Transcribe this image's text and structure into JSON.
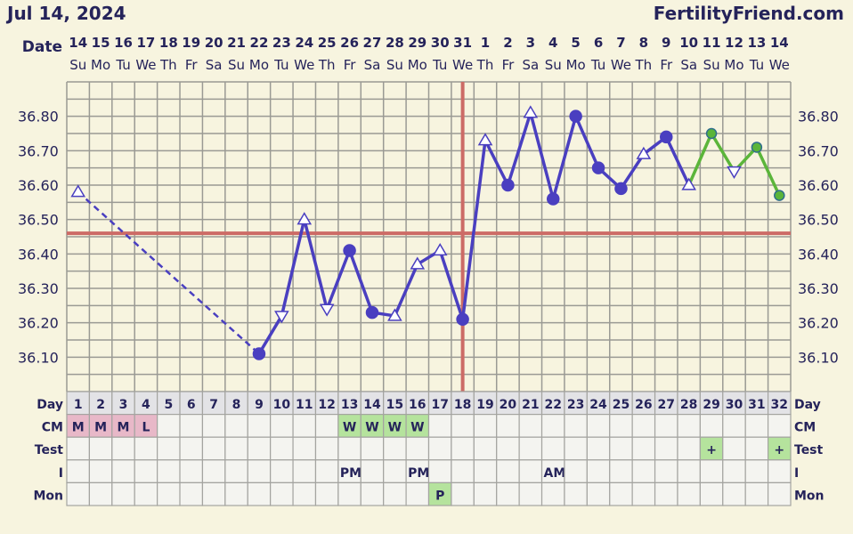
{
  "header": {
    "date": "Jul 14, 2024",
    "site": "FertilityFriend.com"
  },
  "labels": {
    "date": "Date",
    "day": "Day",
    "cm": "CM",
    "test": "Test",
    "intercourse": "I",
    "mon": "Mon"
  },
  "colors": {
    "background": "#f7f4df",
    "line": "#4a3fc0",
    "green": "#5bb53a",
    "coverline": "#cc6b66",
    "menses_cell": "#e8b8c8",
    "fertile_cell": "#b5e39d",
    "day_cell": "#e3e3e6",
    "grid": "#9a9a94"
  },
  "chart_data": {
    "type": "line",
    "dates": [
      "14",
      "15",
      "16",
      "17",
      "18",
      "19",
      "20",
      "21",
      "22",
      "23",
      "24",
      "25",
      "26",
      "27",
      "28",
      "29",
      "30",
      "31",
      "1",
      "2",
      "3",
      "4",
      "5",
      "6",
      "7",
      "8",
      "9",
      "10",
      "11",
      "12",
      "13",
      "14"
    ],
    "weekdays": [
      "Su",
      "Mo",
      "Tu",
      "We",
      "Th",
      "Fr",
      "Sa",
      "Su",
      "Mo",
      "Tu",
      "We",
      "Th",
      "Fr",
      "Sa",
      "Su",
      "Mo",
      "Tu",
      "We",
      "Th",
      "Fr",
      "Sa",
      "Su",
      "Mo",
      "Tu",
      "We",
      "Th",
      "Fr",
      "Sa",
      "Su",
      "Mo",
      "Tu",
      "We"
    ],
    "days": [
      1,
      2,
      3,
      4,
      5,
      6,
      7,
      8,
      9,
      10,
      11,
      12,
      13,
      14,
      15,
      16,
      17,
      18,
      19,
      20,
      21,
      22,
      23,
      24,
      25,
      26,
      27,
      28,
      29,
      30,
      31,
      32
    ],
    "ylim": [
      36.0,
      36.9
    ],
    "yticks": [
      "36.10",
      "36.20",
      "36.30",
      "36.40",
      "36.50",
      "36.60",
      "36.70",
      "36.80"
    ],
    "grid": true,
    "coverline": 36.46,
    "ovulation_day": 18,
    "temps": [
      {
        "day": 1,
        "temp": 36.58,
        "marker": "up"
      },
      {
        "day": 9,
        "temp": 36.11,
        "marker": "dot"
      },
      {
        "day": 10,
        "temp": 36.22,
        "marker": "down"
      },
      {
        "day": 11,
        "temp": 36.5,
        "marker": "up"
      },
      {
        "day": 12,
        "temp": 36.24,
        "marker": "down"
      },
      {
        "day": 13,
        "temp": 36.41,
        "marker": "dot"
      },
      {
        "day": 14,
        "temp": 36.23,
        "marker": "dot"
      },
      {
        "day": 15,
        "temp": 36.22,
        "marker": "up"
      },
      {
        "day": 16,
        "temp": 36.37,
        "marker": "up"
      },
      {
        "day": 17,
        "temp": 36.41,
        "marker": "up"
      },
      {
        "day": 18,
        "temp": 36.21,
        "marker": "dot"
      },
      {
        "day": 19,
        "temp": 36.73,
        "marker": "up"
      },
      {
        "day": 20,
        "temp": 36.6,
        "marker": "dot"
      },
      {
        "day": 21,
        "temp": 36.81,
        "marker": "up"
      },
      {
        "day": 22,
        "temp": 36.56,
        "marker": "dot"
      },
      {
        "day": 23,
        "temp": 36.8,
        "marker": "dot"
      },
      {
        "day": 24,
        "temp": 36.65,
        "marker": "dot"
      },
      {
        "day": 25,
        "temp": 36.59,
        "marker": "dot"
      },
      {
        "day": 26,
        "temp": 36.69,
        "marker": "up"
      },
      {
        "day": 27,
        "temp": 36.74,
        "marker": "dot"
      },
      {
        "day": 28,
        "temp": 36.6,
        "marker": "up"
      },
      {
        "day": 29,
        "temp": 36.75,
        "marker": "dot",
        "green": true
      },
      {
        "day": 30,
        "temp": 36.64,
        "marker": "down",
        "green": true
      },
      {
        "day": 31,
        "temp": 36.71,
        "marker": "dot",
        "green": true
      },
      {
        "day": 32,
        "temp": 36.57,
        "marker": "dot",
        "green": true
      }
    ],
    "cm": {
      "1": "M",
      "2": "M",
      "3": "M",
      "4": "L",
      "13": "W",
      "14": "W",
      "15": "W",
      "16": "W"
    },
    "test": {
      "29": "+",
      "32": "+"
    },
    "intercourse": {
      "13": "PM",
      "16": "PM",
      "22": "AM"
    },
    "mon": {
      "17": "P"
    }
  }
}
